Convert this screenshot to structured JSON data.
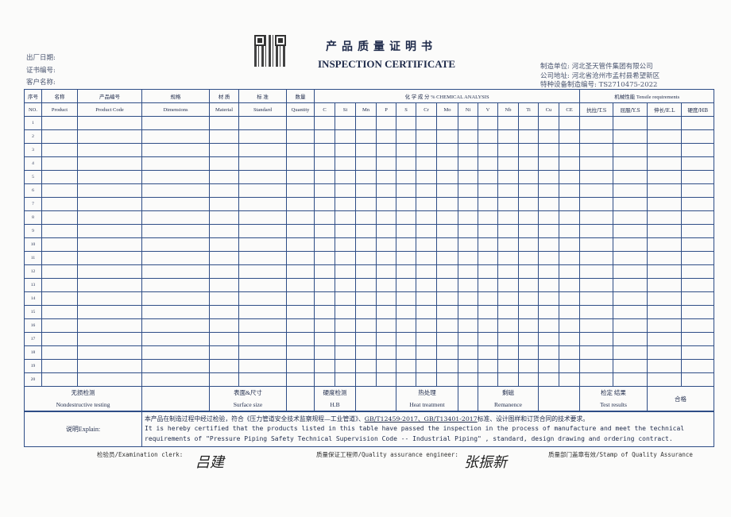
{
  "header": {
    "title_cn": "产品质量证明书",
    "title_en": "INSPECTION CERTIFICATE",
    "left_fields": [
      "出厂日期:",
      "证书编号:",
      "客户名称:"
    ],
    "right_fields": [
      "制造单位: 河北圣天管件集团有限公司",
      "公司地址: 河北省沧州市孟村县希望新区",
      "特种设备制造编号: TS2710475-2022"
    ],
    "qr_code": "qr-code"
  },
  "table": {
    "columns": [
      {
        "cn": "序号",
        "en": "NO."
      },
      {
        "cn": "名称",
        "en": "Product"
      },
      {
        "cn": "产品编号",
        "en": "Product Code"
      },
      {
        "cn": "规格",
        "en": "Dimensions"
      },
      {
        "cn": "材 质",
        "en": "Material"
      },
      {
        "cn": "标 准",
        "en": "Standard"
      },
      {
        "cn": "数量",
        "en": "Quantity"
      }
    ],
    "chem_header": "化 学 成 分 %   CHEMICAL ANALYSIS",
    "chem_elements": [
      "C",
      "Si",
      "Mn",
      "P",
      "S",
      "Cr",
      "Mo",
      "Ni",
      "V",
      "Nb",
      "Ti",
      "Cu",
      "CE"
    ],
    "mech_header": "机械性能  Tensile requirements",
    "mech_items": [
      "抗拉/T.S",
      "屈服/Y.S",
      "伸长/E.L",
      "硬度/HB"
    ],
    "rows": [
      "1",
      "2",
      "3",
      "4",
      "5",
      "6",
      "7",
      "8",
      "9",
      "10",
      "11",
      "12",
      "13",
      "14",
      "15",
      "16",
      "17",
      "18",
      "19",
      "20"
    ]
  },
  "bottom": {
    "ndt_cn": "无损检测",
    "ndt_en": "Nondestructive testing",
    "surface_cn": "表面&尺寸",
    "surface_en": "Surface size",
    "hardness_cn": "硬度检测",
    "hardness_en": "H.B",
    "heat_cn": "热处理",
    "heat_en": "Heat treatment",
    "remanence_cn": "剩磁",
    "remanence_en": "Remanence",
    "result_cn": "检定 结果",
    "result_en": "Test results",
    "result_value": "合格"
  },
  "explain": {
    "label": "说明Explain:",
    "cn_pre": "本产品在制造过程中经过检验，符合《压力管道安全技术监察规程—工业管道》、",
    "cn_std": "GB/T12459-2017、GB/T13401-2017",
    "cn_post": "标准、设计图样和订货合同的技术要求。",
    "en_line1": "It is hereby certified that the products listed in this table have passed the inspection in the process of manufacture and meet the technical",
    "en_line2": "requirements of \"Pressure Piping Safety Technical Supervision Code -- Industrial Piping\" , standard, design drawing and ordering contract."
  },
  "signatures": {
    "clerk_label": "检验员/Examination clerk:",
    "clerk_sig": "吕建",
    "qa_label": "质量保证工程师/Quality assurance engineer:",
    "qa_sig": "张振新",
    "stamp_label": "质量部门盖章有效/Stamp of Quality Assurance"
  }
}
